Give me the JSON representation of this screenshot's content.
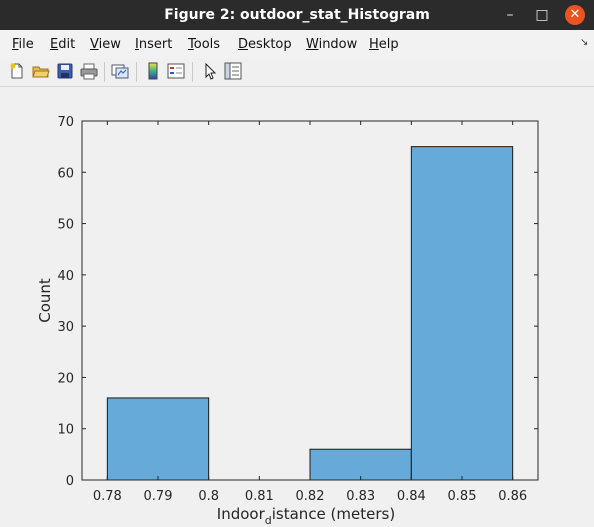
{
  "window": {
    "title": "Figure 2: outdoor_stat_Histogram",
    "minimize_glyph": "–",
    "maximize_glyph": "□",
    "close_glyph": "✕"
  },
  "menubar": {
    "items": [
      {
        "key": "file",
        "first": "F",
        "rest": "ile"
      },
      {
        "key": "edit",
        "first": "E",
        "rest": "dit"
      },
      {
        "key": "view",
        "first": "V",
        "rest": "iew"
      },
      {
        "key": "insert",
        "first": "I",
        "rest": "nsert"
      },
      {
        "key": "tools",
        "first": "T",
        "rest": "ools"
      },
      {
        "key": "desktop",
        "first": "D",
        "rest": "esktop"
      },
      {
        "key": "window",
        "first": "W",
        "rest": "indow"
      },
      {
        "key": "help",
        "first": "H",
        "rest": "elp"
      }
    ],
    "expand_glyph": "↘"
  },
  "toolbar": {
    "icons": [
      "new-figure-icon",
      "open-file-icon",
      "save-icon",
      "print-icon",
      "link-plot-icon",
      "colorbar-icon",
      "legend-icon",
      "pointer-icon",
      "property-editor-icon"
    ]
  },
  "colors": {
    "bar_fill": "#66aad9",
    "bar_edge": "#1a1a1a",
    "title_bar": "#2b2b2b",
    "close_button": "#e95420"
  },
  "chart_data": {
    "type": "bar",
    "bins": [
      {
        "x0": 0.78,
        "x1": 0.8,
        "count": 16
      },
      {
        "x0": 0.8,
        "x1": 0.82,
        "count": 0
      },
      {
        "x0": 0.82,
        "x1": 0.84,
        "count": 6
      },
      {
        "x0": 0.84,
        "x1": 0.86,
        "count": 65
      }
    ],
    "xlim": [
      0.775,
      0.865
    ],
    "ylim": [
      0,
      70
    ],
    "xticks": [
      "0.78",
      "0.79",
      "0.8",
      "0.81",
      "0.82",
      "0.83",
      "0.84",
      "0.85",
      "0.86"
    ],
    "xtick_values": [
      0.78,
      0.79,
      0.8,
      0.81,
      0.82,
      0.83,
      0.84,
      0.85,
      0.86
    ],
    "yticks": [
      "0",
      "10",
      "20",
      "30",
      "40",
      "50",
      "60",
      "70"
    ],
    "ytick_values": [
      0,
      10,
      20,
      30,
      40,
      50,
      60,
      70
    ],
    "xlabel_main": "Indoor",
    "xlabel_sub": "d",
    "xlabel_rest": "istance (meters)",
    "ylabel": "Count",
    "grid": false
  }
}
